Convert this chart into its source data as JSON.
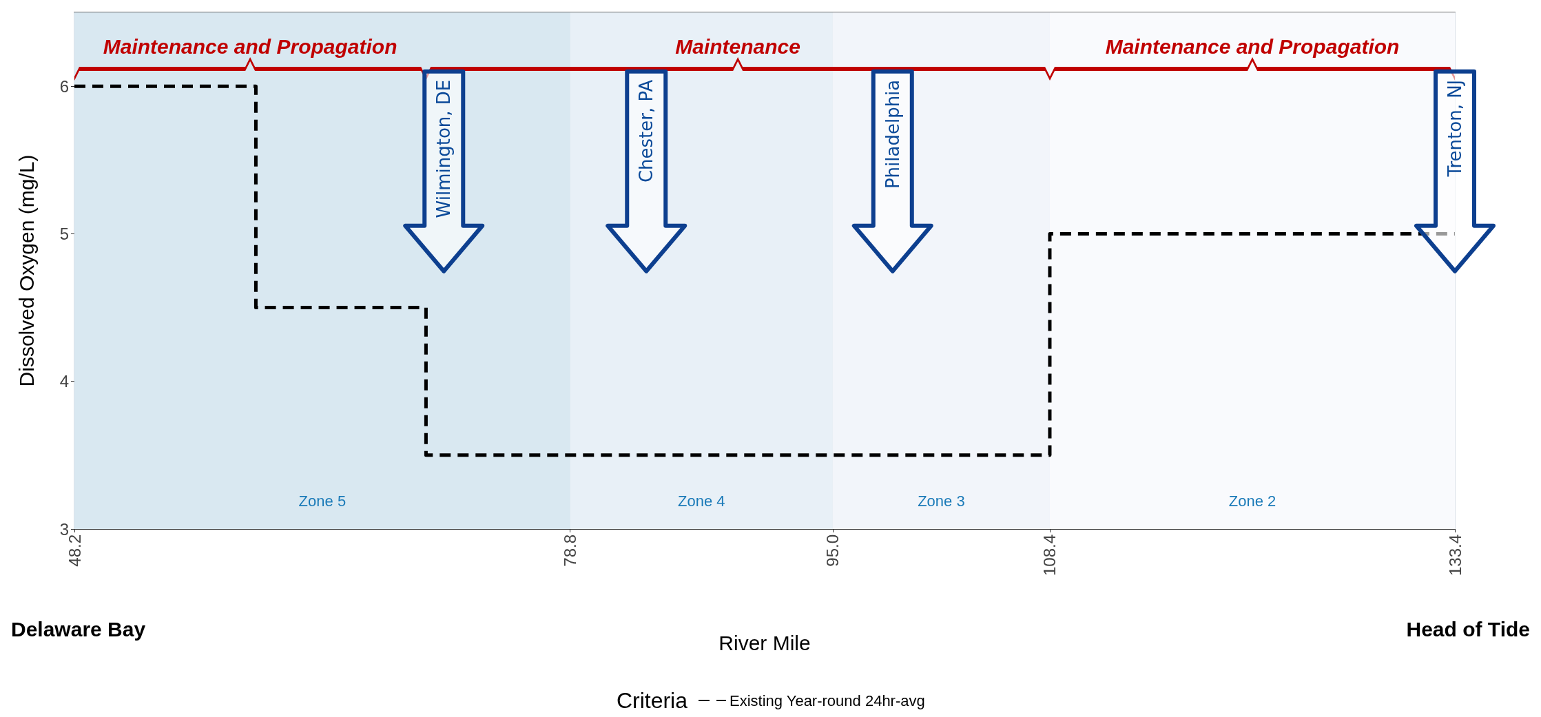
{
  "chart_data": {
    "type": "step",
    "xlabel": "River Mile",
    "ylabel": "Dissolved Oxygen (mg/L)",
    "legend_title": "Criteria",
    "legend": "bottom",
    "grid": true,
    "marker": "none",
    "line_style": "dashed",
    "xlim": [
      48.2,
      133.4
    ],
    "xticks": [
      48.2,
      78.8,
      {
        "value": 95,
        "label": "95.0"
      },
      108.4,
      133.4
    ],
    "ylim": [
      3,
      6.5
    ],
    "yticks": [
      3,
      4,
      5,
      6
    ],
    "series": [
      {
        "name": "Existing Year-round 24hr-avg",
        "color": "#000000",
        "x": [
          48.2,
          59.4,
          69.9,
          108.4,
          133.4
        ],
        "values": [
          6,
          4.5,
          3.5,
          5,
          5
        ]
      }
    ],
    "bands": [
      {
        "axis": "x",
        "from": 48.2,
        "to": 78.8,
        "label": "Zone 5",
        "color": "#d9e8f1"
      },
      {
        "axis": "x",
        "from": 78.8,
        "to": 95,
        "label": "Zone 4",
        "color": "#e8f0f7"
      },
      {
        "axis": "x",
        "from": 95,
        "to": 108.4,
        "label": "Zone 3",
        "color": "#f2f5fa"
      },
      {
        "axis": "x",
        "from": 108.4,
        "to": 133.4,
        "label": "Zone 2",
        "color": "#f9fafd"
      }
    ],
    "annotations": [
      "Maintenance and Propagation",
      "Maintenance",
      "Maintenance and Propagation",
      "Wilmington, DE",
      "Chester, PA",
      "Philadelphia",
      {
        "text": "Trenton, NJ",
        "x": 133.4,
        "y": 6.1
      },
      "Delaware Bay",
      "Head of Tide"
    ]
  }
}
